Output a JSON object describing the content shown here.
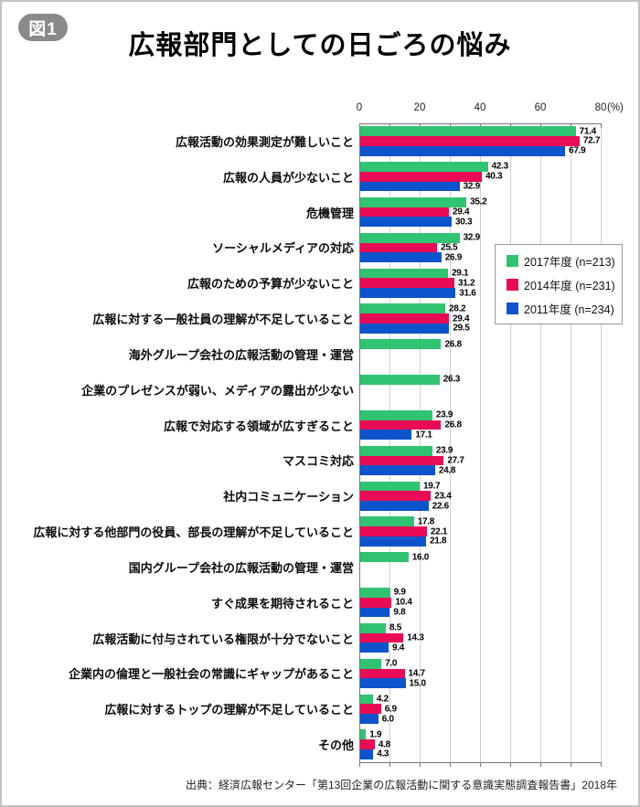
{
  "figure": {
    "badge": "図1",
    "title": "広報部門としての日ごろの悩み",
    "source": "出典：経済広報センター「第13回企業の広報活動に関する意識実態調査報告書」2018年"
  },
  "axis": {
    "tick_labels": [
      "0",
      "20",
      "40",
      "60",
      "80"
    ],
    "tick_values": [
      0,
      20,
      40,
      60,
      80
    ],
    "unit": "(%)"
  },
  "colors": {
    "green_2017": "#30C371",
    "crimson_2014": "#E90B55",
    "blue_2011": "#0D53CB",
    "badge_gray": "#8a8a8a",
    "gridline": "#cfcfcf",
    "axis": "#777777"
  },
  "legend": {
    "items": [
      {
        "key": "2017",
        "label": "2017年度 (n=213)",
        "color": "#30C371"
      },
      {
        "key": "2014",
        "label": "2014年度 (n=231)",
        "color": "#E90B55"
      },
      {
        "key": "2011",
        "label": "2011年度 (n=234)",
        "color": "#0D53CB"
      }
    ]
  },
  "chart_data": {
    "type": "bar",
    "orientation": "horizontal",
    "title": "広報部門としての日ごろの悩み",
    "xlabel": "(%)",
    "xlim": [
      0,
      80
    ],
    "grid_step": 10,
    "legend_position": "right-inside",
    "categories": [
      "広報活動の効果測定が難しいこと",
      "広報の人員が少ないこと",
      "危機管理",
      "ソーシャルメディアの対応",
      "広報のための予算が少ないこと",
      "広報に対する一般社員の理解が不足していること",
      "海外グループ会社の広報活動の管理・運営",
      "企業のプレゼンスが弱い、メディアの露出が少ない",
      "広報で対応する領域が広すぎること",
      "マスコミ対応",
      "社内コミュニケーション",
      "広報に対する他部門の役員、部長の理解が不足していること",
      "国内グループ会社の広報活動の管理・運営",
      "すぐ成果を期待されること",
      "広報活動に付与されている権限が十分でないこと",
      "企業内の倫理と一般社会の常識にギャップがあること",
      "広報に対するトップの理解が不足していること",
      "その他"
    ],
    "series": [
      {
        "name": "2017年度 (n=213)",
        "key": "2017",
        "color": "#30C371",
        "values": [
          71.4,
          42.3,
          35.2,
          32.9,
          29.1,
          28.2,
          26.8,
          26.3,
          23.9,
          23.9,
          19.7,
          17.8,
          16.0,
          9.9,
          8.5,
          7.0,
          4.2,
          1.9
        ]
      },
      {
        "name": "2014年度 (n=231)",
        "key": "2014",
        "color": "#E90B55",
        "values": [
          72.7,
          40.3,
          29.4,
          25.5,
          31.2,
          29.4,
          null,
          null,
          26.8,
          27.7,
          23.4,
          22.1,
          null,
          10.4,
          14.3,
          14.7,
          6.9,
          4.8
        ]
      },
      {
        "name": "2011年度 (n=234)",
        "key": "2011",
        "color": "#0D53CB",
        "values": [
          67.9,
          32.9,
          30.3,
          26.9,
          31.6,
          29.5,
          null,
          null,
          17.1,
          24.8,
          22.6,
          21.8,
          null,
          9.8,
          9.4,
          15.0,
          6.0,
          4.3
        ]
      }
    ]
  }
}
